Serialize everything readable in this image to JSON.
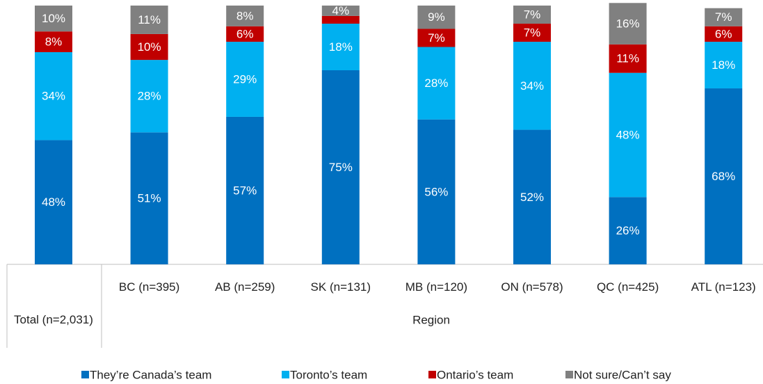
{
  "chart_data": {
    "type": "stacked_bar",
    "categories": [
      "Total (n=2,031)",
      "BC (n=395)",
      "AB (n=259)",
      "SK (n=131)",
      "MB (n=120)",
      "ON (n=578)",
      "QC (n=425)",
      "ATL (n=123)"
    ],
    "group_label": "Region",
    "ylim": [
      0,
      100
    ],
    "legend": "bottom",
    "series": [
      {
        "name": "They’re Canada’s team",
        "color": "#0070c0",
        "values": [
          48,
          51,
          57,
          75,
          56,
          52,
          26,
          68
        ],
        "value_labels": [
          "48%",
          "51%",
          "57%",
          "75%",
          "56%",
          "52%",
          "26%",
          "68%"
        ]
      },
      {
        "name": "Toronto’s team",
        "color": "#00b0f0",
        "values": [
          34,
          28,
          29,
          18,
          28,
          34,
          48,
          18
        ],
        "value_labels": [
          "34%",
          "28%",
          "29%",
          "18%",
          "28%",
          "34%",
          "48%",
          "18%"
        ]
      },
      {
        "name": "Ontario’s team",
        "color": "#c00000",
        "values": [
          8,
          10,
          6,
          3,
          7,
          7,
          11,
          6
        ],
        "value_labels": [
          "8%",
          "10%",
          "6%",
          null,
          "7%",
          "7%",
          "11%",
          "6%"
        ]
      },
      {
        "name": "Not sure/Can’t say",
        "color": "#808080",
        "values": [
          10,
          11,
          8,
          4,
          9,
          7,
          16,
          7
        ],
        "value_labels": [
          "10%",
          "11%",
          "8%",
          "4%",
          "9%",
          "7%",
          "16%",
          "7%"
        ]
      }
    ]
  }
}
